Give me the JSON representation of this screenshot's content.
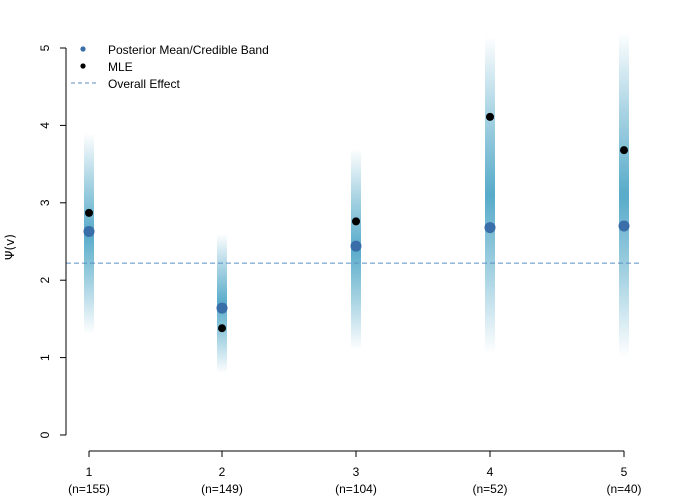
{
  "chart_data": {
    "type": "scatter",
    "ylabel": "Ψ(v)",
    "ylim": [
      0,
      5
    ],
    "y_ticks": [
      "0",
      "1",
      "2",
      "3",
      "4",
      "5"
    ],
    "categories": [
      {
        "x": "1",
        "n": "(n=155)"
      },
      {
        "x": "2",
        "n": "(n=149)"
      },
      {
        "x": "3",
        "n": "(n=104)"
      },
      {
        "x": "4",
        "n": "(n=52)"
      },
      {
        "x": "5",
        "n": "(n=40)"
      }
    ],
    "series": [
      {
        "name": "Posterior Mean/Credible Band",
        "values": [
          2.63,
          1.64,
          2.44,
          2.68,
          2.7
        ]
      },
      {
        "name": "MLE",
        "values": [
          2.87,
          1.38,
          2.76,
          4.11,
          3.68
        ]
      }
    ],
    "bands": [
      {
        "low": 1.3,
        "high": 3.9
      },
      {
        "low": 0.8,
        "high": 2.6
      },
      {
        "low": 1.1,
        "high": 3.7
      },
      {
        "low": 1.05,
        "high": 5.15
      },
      {
        "low": 1.0,
        "high": 5.2
      }
    ],
    "overall_effect": 2.22,
    "legend": {
      "position": "top-left",
      "entries": [
        {
          "label": "Posterior Mean/Credible Band",
          "color": "#3a6ea8",
          "style": "dot"
        },
        {
          "label": "MLE",
          "color": "#000000",
          "style": "dot"
        },
        {
          "label": "Overall Effect",
          "color": "#5b8fc2",
          "style": "dashed"
        }
      ]
    },
    "colors": {
      "posterior": "#3a6ea8",
      "mle": "#000000",
      "band": "#3a9cc0",
      "overall": "#5b8fc2"
    }
  }
}
